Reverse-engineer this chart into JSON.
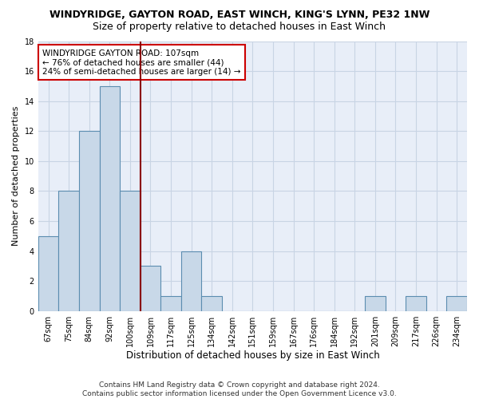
{
  "title": "WINDYRIDGE, GAYTON ROAD, EAST WINCH, KING'S LYNN, PE32 1NW",
  "subtitle": "Size of property relative to detached houses in East Winch",
  "xlabel": "Distribution of detached houses by size in East Winch",
  "ylabel": "Number of detached properties",
  "categories": [
    "67sqm",
    "75sqm",
    "84sqm",
    "92sqm",
    "100sqm",
    "109sqm",
    "117sqm",
    "125sqm",
    "134sqm",
    "142sqm",
    "151sqm",
    "159sqm",
    "167sqm",
    "176sqm",
    "184sqm",
    "192sqm",
    "201sqm",
    "209sqm",
    "217sqm",
    "226sqm",
    "234sqm"
  ],
  "values": [
    5,
    8,
    12,
    15,
    8,
    3,
    1,
    4,
    1,
    0,
    0,
    0,
    0,
    0,
    0,
    0,
    1,
    0,
    1,
    0,
    1
  ],
  "bar_color": "#c8d8e8",
  "bar_edge_color": "#5b8db0",
  "vline_x": 4.5,
  "vline_color": "#8b0000",
  "annotation_text": "WINDYRIDGE GAYTON ROAD: 107sqm\n← 76% of detached houses are smaller (44)\n24% of semi-detached houses are larger (14) →",
  "annotation_box_color": "#ffffff",
  "annotation_box_edge": "#cc0000",
  "ylim": [
    0,
    18
  ],
  "yticks": [
    0,
    2,
    4,
    6,
    8,
    10,
    12,
    14,
    16,
    18
  ],
  "grid_color": "#c8d4e4",
  "bg_color": "#e8eef8",
  "footnote": "Contains HM Land Registry data © Crown copyright and database right 2024.\nContains public sector information licensed under the Open Government Licence v3.0.",
  "title_fontsize": 9,
  "subtitle_fontsize": 9,
  "xlabel_fontsize": 8.5,
  "ylabel_fontsize": 8,
  "tick_fontsize": 7,
  "annotation_fontsize": 7.5,
  "footnote_fontsize": 6.5
}
